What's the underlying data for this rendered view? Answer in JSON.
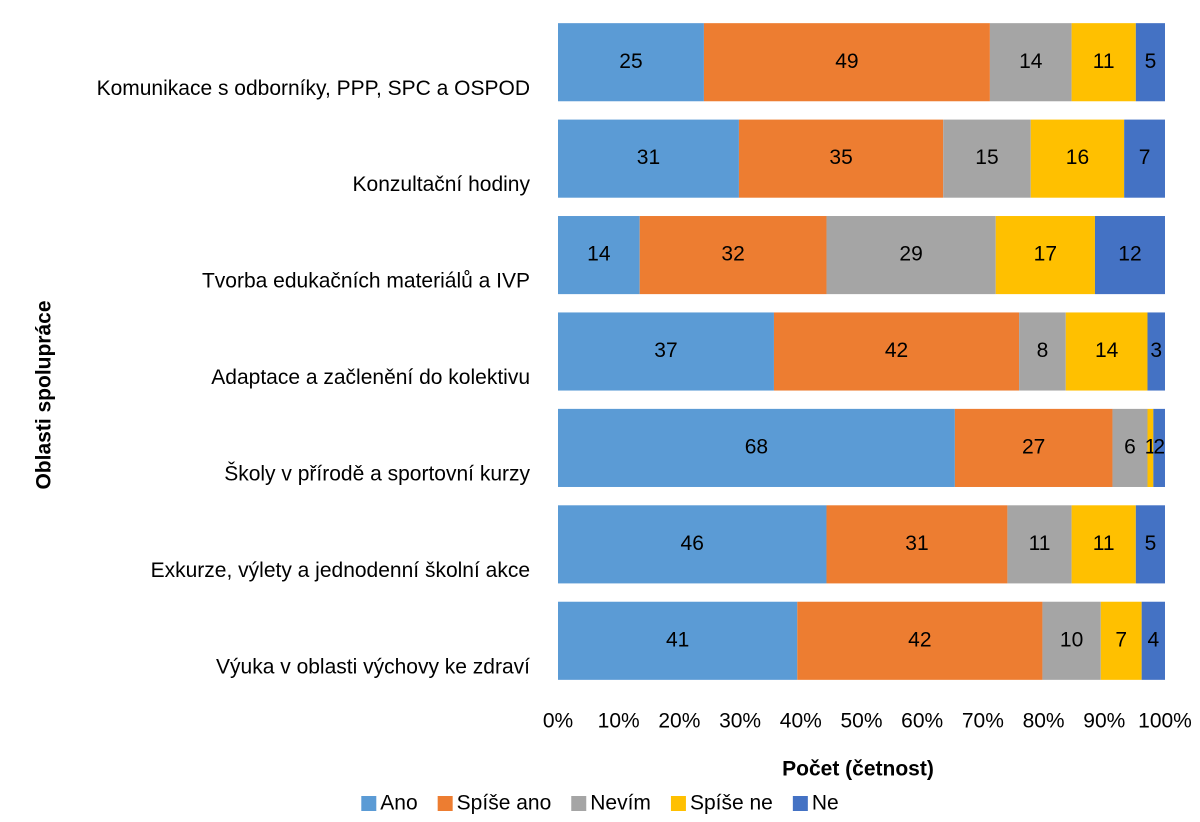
{
  "chart_data": {
    "type": "bar",
    "orientation": "horizontal",
    "stacking": "percent",
    "x_label": "Počet (četnost)",
    "y_label": "Oblasti spolupráce",
    "categories": [
      "Komunikace s odborníky, PPP, SPC a OSPOD",
      "Konzultační hodiny",
      "Tvorba edukačních materiálů a IVP",
      "Adaptace a začlenění do kolektivu",
      "Školy v přírodě a sportovní kurzy",
      "Exkurze, výlety a jednodenní školní akce",
      "Výuka v oblasti výchovy ke zdraví"
    ],
    "series": [
      {
        "name": "Ano",
        "color": "#5b9bd5",
        "values": [
          25,
          31,
          14,
          37,
          68,
          46,
          41
        ]
      },
      {
        "name": "Spíše ano",
        "color": "#ed7d31",
        "values": [
          49,
          35,
          32,
          42,
          27,
          31,
          42
        ]
      },
      {
        "name": "Nevím",
        "color": "#a5a5a5",
        "values": [
          14,
          15,
          29,
          8,
          6,
          11,
          10
        ]
      },
      {
        "name": "Spíše ne",
        "color": "#ffc000",
        "values": [
          11,
          16,
          17,
          14,
          1,
          11,
          7
        ]
      },
      {
        "name": "Ne",
        "color": "#4472c4",
        "values": [
          5,
          7,
          12,
          3,
          2,
          5,
          4
        ]
      }
    ],
    "xlim": [
      0,
      100
    ],
    "xticks": [
      {
        "value": 0,
        "label": "0%"
      },
      {
        "value": 10,
        "label": "10%"
      },
      {
        "value": 20,
        "label": "20%"
      },
      {
        "value": 30,
        "label": "30%"
      },
      {
        "value": 40,
        "label": "40%"
      },
      {
        "value": 50,
        "label": "50%"
      },
      {
        "value": 60,
        "label": "60%"
      },
      {
        "value": 70,
        "label": "70%"
      },
      {
        "value": 80,
        "label": "80%"
      },
      {
        "value": 90,
        "label": "90%"
      },
      {
        "value": 100,
        "label": "100%"
      }
    ],
    "legend": "bottom"
  }
}
